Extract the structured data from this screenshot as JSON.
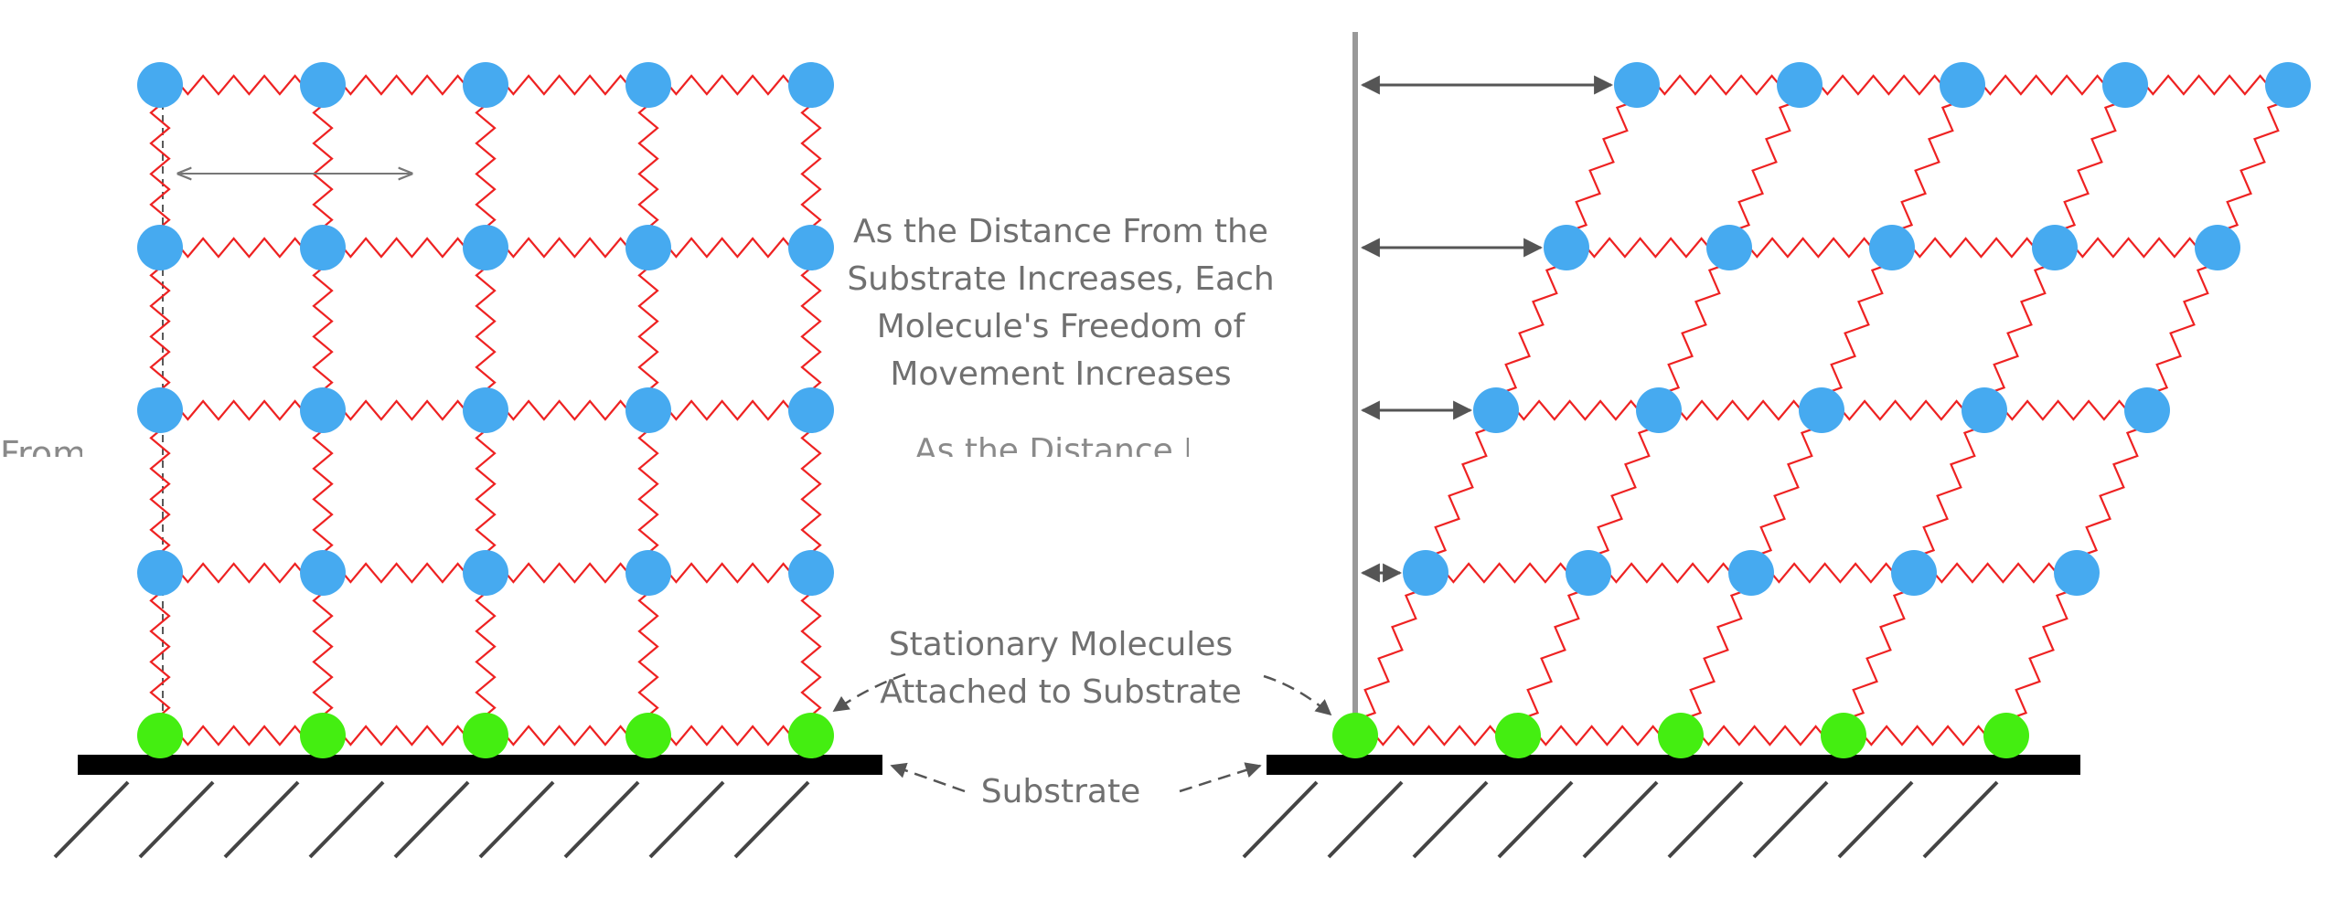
{
  "labels": {
    "freedom": "As the Distance From the Substrate Increases, Each Molecule's Freedom of Movement Increases",
    "freedom_fragment": "As the Distance I",
    "left_fragment": "From",
    "stationary": "Stationary Molecules Attached to Substrate",
    "substrate": "Substrate"
  },
  "colors": {
    "free_molecule": "#46aaf0",
    "stationary_molecule": "#44ee11",
    "spring": "#ee2222",
    "substrate": "#000000",
    "hatch": "#444444",
    "arrow": "#555555",
    "wall": "#999999",
    "text": "#707070"
  },
  "diagram": {
    "columns": 5,
    "rows": 5,
    "stationary_row": "bottom",
    "left_panel_state": "undeformed",
    "right_panel_state": "sheared"
  }
}
